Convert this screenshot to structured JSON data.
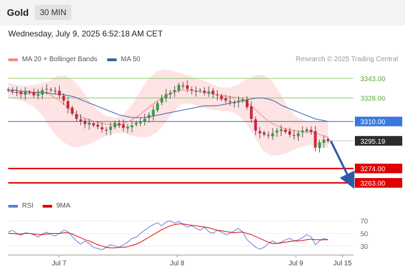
{
  "header": {
    "instrument": "Gold",
    "timeframe": "30 MIN",
    "datetime": "Wednesday, July 9, 2025 6:52:18 AM CET",
    "copyright": "Research © 2025 Trading Central"
  },
  "legend": {
    "ma20_label": "MA 20 + Bollinger Bands",
    "ma20_color": "#f08a8a",
    "ma50_label": "MA 50",
    "ma50_color": "#3a5fa5",
    "rsi_label": "RSI",
    "rsi_color": "#5b7fd6",
    "rsi_ma_label": "9MA",
    "rsi_ma_color": "#e00000"
  },
  "chart_data": [
    {
      "type": "candlestick",
      "ylim": [
        3253,
        3353
      ],
      "x_ticks": [
        "Jul 7",
        "Jul 8",
        "Jul 9",
        "Jul 15"
      ],
      "resistance_levels": [
        {
          "value": 3343.0,
          "label": "3343.00",
          "color": "#8ccc6a"
        },
        {
          "value": 3328.0,
          "label": "3328.00",
          "color": "#8ccc6a"
        }
      ],
      "pivot": {
        "value": 3310.0,
        "label": "3310.00",
        "color": "#3a78e0"
      },
      "last_price": {
        "value": 3295.19,
        "label": "3295.19"
      },
      "support_levels": [
        {
          "value": 3274.0,
          "label": "3274.00",
          "color": "#e00000"
        },
        {
          "value": 3263.0,
          "label": "3263.00",
          "color": "#e00000"
        }
      ],
      "forecast_arrow": {
        "from": 3295,
        "to": 3263,
        "color": "#2f5aa8"
      },
      "close_path": [
        3334,
        3333,
        3332,
        3331,
        3333,
        3332,
        3330,
        3331,
        3334,
        3335,
        3334,
        3333,
        3330,
        3326,
        3320,
        3316,
        3312,
        3310,
        3308,
        3309,
        3307,
        3306,
        3304,
        3303,
        3306,
        3309,
        3307,
        3305,
        3306,
        3307,
        3309,
        3310,
        3312,
        3315,
        3319,
        3324,
        3328,
        3331,
        3332,
        3334,
        3338,
        3337,
        3335,
        3334,
        3333,
        3334,
        3332,
        3333,
        3331,
        3330,
        3327,
        3326,
        3325,
        3324,
        3326,
        3327,
        3321,
        3312,
        3303,
        3301,
        3300,
        3299,
        3301,
        3303,
        3304,
        3302,
        3300,
        3299,
        3301,
        3303,
        3304,
        3302,
        3290,
        3294,
        3296,
        3295
      ],
      "ma50_path": [
        3334,
        3334,
        3333,
        3333,
        3332,
        3332,
        3332,
        3331,
        3331,
        3330,
        3329,
        3327,
        3325,
        3323,
        3321,
        3319,
        3317,
        3315,
        3314,
        3313,
        3313,
        3313,
        3314,
        3315,
        3316,
        3317,
        3318,
        3319,
        3320,
        3321,
        3322,
        3322,
        3322,
        3323,
        3324,
        3325,
        3326,
        3327,
        3328,
        3328,
        3327,
        3325,
        3322,
        3320,
        3318,
        3316,
        3314,
        3312,
        3311,
        3310
      ],
      "ma20_path": [
        3333,
        3332,
        3331,
        3332,
        3333,
        3331,
        3327,
        3322,
        3317,
        3313,
        3311,
        3309,
        3308,
        3307,
        3308,
        3311,
        3315,
        3320,
        3325,
        3329,
        3332,
        3334,
        3334,
        3333,
        3332,
        3331,
        3330,
        3329,
        3328,
        3325,
        3320,
        3314,
        3309,
        3306,
        3304,
        3303,
        3302,
        3302,
        3300,
        3298
      ],
      "bb_upper_path": [
        3340,
        3338,
        3337,
        3338,
        3339,
        3341,
        3345,
        3345,
        3341,
        3334,
        3325,
        3318,
        3314,
        3313,
        3315,
        3322,
        3332,
        3342,
        3348,
        3350,
        3349,
        3347,
        3345,
        3343,
        3341,
        3338,
        3336,
        3336,
        3338,
        3342,
        3345,
        3346,
        3342,
        3333,
        3322,
        3314,
        3311,
        3310,
        3310,
        3310
      ],
      "bb_lower_path": [
        3328,
        3327,
        3325,
        3322,
        3316,
        3306,
        3298,
        3293,
        3290,
        3291,
        3293,
        3296,
        3299,
        3301,
        3301,
        3299,
        3298,
        3298,
        3301,
        3308,
        3316,
        3323,
        3324,
        3322,
        3320,
        3319,
        3318,
        3318,
        3315,
        3309,
        3299,
        3288,
        3284,
        3284,
        3286,
        3289,
        3291,
        3292,
        3291,
        3290
      ]
    },
    {
      "type": "line",
      "name_series": [
        "RSI",
        "9MA"
      ],
      "ylim": [
        20,
        80
      ],
      "y_ticks": [
        "70",
        "50",
        "30"
      ],
      "series": [
        {
          "name": "RSI",
          "values": [
            52,
            55,
            50,
            47,
            51,
            50,
            48,
            44,
            49,
            52,
            48,
            46,
            50,
            55,
            53,
            45,
            38,
            33,
            38,
            34,
            28,
            26,
            24,
            28,
            32,
            30,
            28,
            32,
            36,
            42,
            44,
            50,
            55,
            60,
            64,
            67,
            62,
            68,
            70,
            66,
            69,
            64,
            60,
            62,
            58,
            55,
            60,
            53,
            50,
            55,
            52,
            48,
            50,
            54,
            58,
            52,
            40,
            34,
            28,
            25,
            28,
            34,
            38,
            34,
            36,
            40,
            42,
            38,
            40,
            43,
            48,
            45,
            32,
            38,
            42,
            40
          ]
        },
        {
          "name": "9MA",
          "values": [
            50,
            50,
            49,
            49,
            50,
            50,
            49,
            48,
            48,
            49,
            50,
            50,
            50,
            51,
            51,
            49,
            46,
            43,
            40,
            38,
            35,
            32,
            30,
            28,
            27,
            27,
            28,
            28,
            29,
            31,
            33,
            36,
            40,
            44,
            48,
            52,
            56,
            59,
            62,
            64,
            65,
            65,
            64,
            63,
            62,
            61,
            60,
            59,
            57,
            55,
            54,
            53,
            52,
            51,
            52,
            52,
            50,
            48,
            45,
            42,
            39,
            36,
            34,
            34,
            35,
            36,
            37,
            38,
            38,
            39,
            40,
            41,
            40,
            40,
            40,
            40
          ]
        }
      ]
    }
  ]
}
